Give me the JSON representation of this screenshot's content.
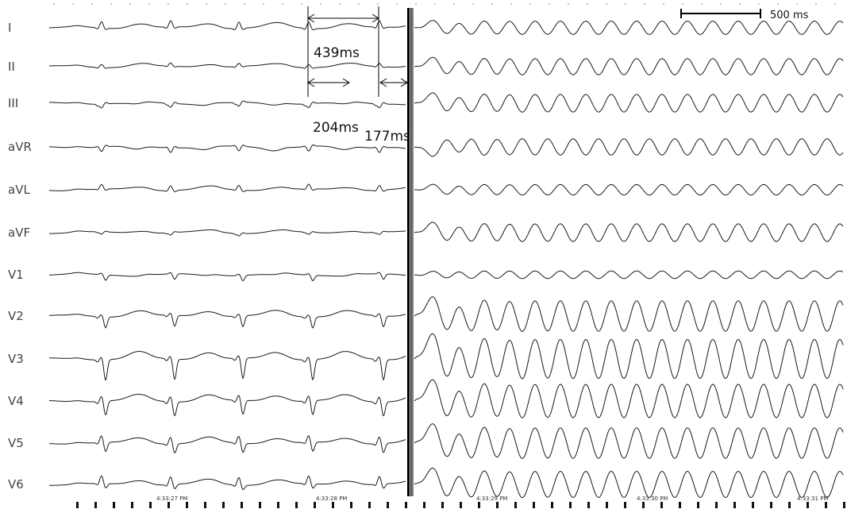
{
  "chart_data": {
    "type": "line",
    "title": "",
    "leads": [
      "I",
      "II",
      "III",
      "aVR",
      "aVL",
      "aVF",
      "V1",
      "V2",
      "V3",
      "V4",
      "V5",
      "V6"
    ],
    "measurements": {
      "cycle_label": "439ms",
      "coupling_1_label": "204ms",
      "coupling_2_label": "177ms"
    },
    "scale_bar": {
      "label": "500 ms",
      "duration_ms": 500
    },
    "time_labels": [
      "4:33:27 PM",
      "4:33:28 PM",
      "4:33:29 PM",
      "4:33:30 PM",
      "4:33:31 PM"
    ],
    "baseline_rr_ms": 439,
    "rhythm_after_pacing": "fast regular oscillation",
    "colors": {
      "trace": "#1a1a1a",
      "background": "#ffffff"
    }
  }
}
